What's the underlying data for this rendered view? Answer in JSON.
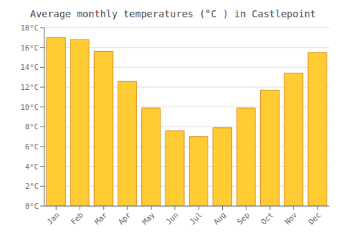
{
  "chart_data": {
    "type": "bar",
    "title": "Average monthly temperatures (°C ) in Castlepoint",
    "categories": [
      "Jan",
      "Feb",
      "Mar",
      "Apr",
      "May",
      "Jun",
      "Jul",
      "Aug",
      "Sep",
      "Oct",
      "Nov",
      "Dec"
    ],
    "values": [
      17.0,
      16.8,
      15.6,
      12.6,
      9.9,
      7.6,
      7.0,
      7.9,
      9.9,
      11.7,
      13.4,
      15.5
    ],
    "color": "#FFCC33",
    "ylim": [
      0,
      18
    ],
    "yticks": [
      {
        "value": 0,
        "label": "0°C"
      },
      {
        "value": 2,
        "label": "2°C"
      },
      {
        "value": 4,
        "label": "4°C"
      },
      {
        "value": 6,
        "label": "6°C"
      },
      {
        "value": 8,
        "label": "8°C"
      },
      {
        "value": 10,
        "label": "10°C"
      },
      {
        "value": 12,
        "label": "12°C"
      },
      {
        "value": 14,
        "label": "14°C"
      },
      {
        "value": 16,
        "label": "16°C"
      },
      {
        "value": 18,
        "label": "18°C"
      }
    ],
    "grid": true
  }
}
